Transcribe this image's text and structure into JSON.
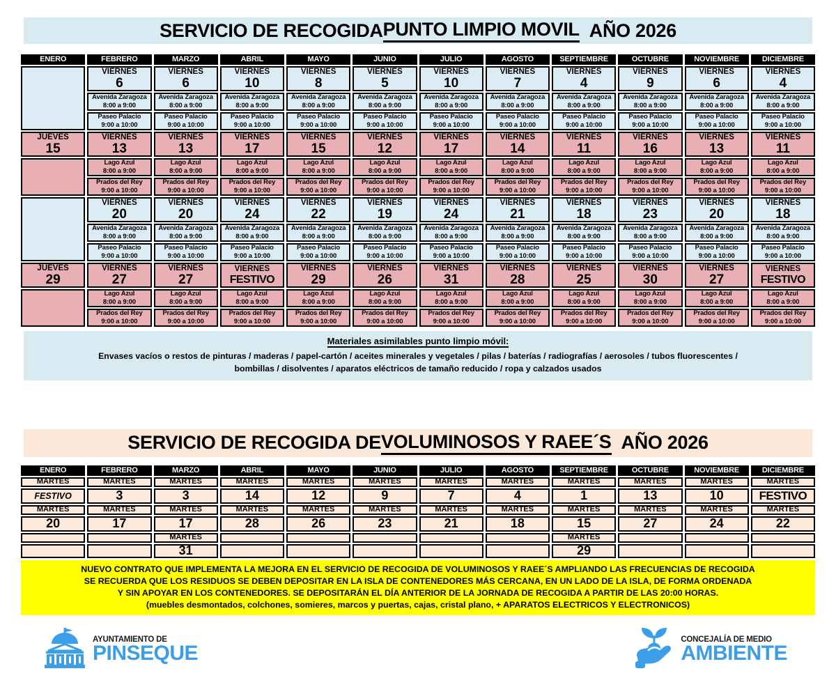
{
  "colors": {
    "cell_blue": "#dcecf4",
    "cell_pink": "#e8b0b4",
    "cell_peach": "#fce9d9",
    "band_blue": "#d8eaf2",
    "band_peach": "#fbe8d8",
    "notice_yellow": "#ffff00",
    "header_bg": "#000000",
    "header_fg": "#ffffff",
    "logo_blue": "#3b9ee6"
  },
  "months": [
    "ENERO",
    "FEBRERO",
    "MARZO",
    "ABRIL",
    "MAYO",
    "JUNIO",
    "JULIO",
    "AGOSTO",
    "SEPTIEMBRE",
    "OCTUBRE",
    "NOVIEMBRE",
    "DICIEMBRE"
  ],
  "punto_limpio": {
    "title_prefix": "SERVICIO DE RECOGIDA ",
    "title_underline": "PUNTO LIMPIO MOVIL",
    "title_suffix": "AÑO 2026",
    "day_friday": "VIERNES",
    "locations_blue": {
      "loc1": "Avenida Zaragoza",
      "time1": "8:00 a 9:00",
      "loc2": "Paseo Palacio",
      "time2": "9:00 a 10:00"
    },
    "locations_pink": {
      "loc1": "Lago Azul",
      "time1": "8:00 a 9:00",
      "loc2": "Prados del Rey",
      "time2": "9:00 a 10:00"
    },
    "blocks": [
      {
        "variant": "blue",
        "enero_day": "",
        "enero_date": "",
        "dates": [
          "6",
          "6",
          "10",
          "8",
          "5",
          "10",
          "7",
          "4",
          "9",
          "6",
          "4"
        ]
      },
      {
        "variant": "pink",
        "enero_day": "JUEVES",
        "enero_date": "15",
        "dates": [
          "13",
          "13",
          "17",
          "15",
          "12",
          "17",
          "14",
          "11",
          "16",
          "13",
          "11"
        ]
      },
      {
        "variant": "blue",
        "enero_day": "",
        "enero_date": "",
        "dates": [
          "20",
          "20",
          "24",
          "22",
          "19",
          "24",
          "21",
          "18",
          "23",
          "20",
          "18"
        ]
      },
      {
        "variant": "pink",
        "enero_day": "JUEVES",
        "enero_date": "29",
        "dates": [
          "27",
          "27",
          "FESTIVO",
          "29",
          "26",
          "31",
          "28",
          "25",
          "30",
          "27",
          "FESTIVO"
        ]
      }
    ],
    "materials_heading": "Materiales asimilables punto limpio móvil:",
    "materials_line1": "Envases vacíos o restos de pinturas / maderas / papel-cartón / aceites minerales y vegetales / pilas / baterías / radiografías / aerosoles / tubos fluorescentes /",
    "materials_line2": "bombillas / disolventes / aparatos eléctricos de tamaño reducido / ropa y calzados usados"
  },
  "voluminosos": {
    "title_prefix": "SERVICIO DE RECOGIDA DE ",
    "title_underline": "VOLUMINOSOS Y RAEE´S",
    "title_suffix": "AÑO 2026",
    "day_label": "MARTES",
    "r1_dates": [
      "FESTIVO",
      "3",
      "3",
      "14",
      "12",
      "9",
      "7",
      "4",
      "1",
      "13",
      "10",
      "FESTIVO"
    ],
    "r1_italic_cols": [
      0
    ],
    "r2_dates": [
      "20",
      "17",
      "17",
      "28",
      "26",
      "23",
      "21",
      "18",
      "15",
      "27",
      "24",
      "22"
    ],
    "r3_martes_cols": [
      2,
      8
    ],
    "r3_dates": [
      "",
      "",
      "31",
      "",
      "",
      "",
      "",
      "",
      "29",
      "",
      "",
      ""
    ],
    "notice_lines": [
      "NUEVO CONTRATO QUE IMPLEMENTA LA MEJORA EN EL SERVICIO DE RECOGIDA DE VOLUMINOSOS Y RAEE´S AMPLIANDO LAS FRECUENCIAS DE RECOGIDA",
      "SE RECUERDA QUE LOS RESIDUOS SE DEBEN DEPOSITAR EN LA ISLA DE CONTENEDORES MÁS CERCANA, EN UN LADO DE LA ISLA, DE FORMA ORDENADA",
      "Y SIN APOYAR EN LOS CONTENEDORES.  SE DEPOSITARÁN EL DÍA ANTERIOR DE LA JORNADA DE RECOGIDA A PARTIR DE LAS 20:00 HORAS.",
      "(muebles desmontados, colchones, somieres, marcos y puertas, cajas, cristal plano, + APARATOS ELECTRICOS Y ELECTRONICOS)"
    ]
  },
  "footer": {
    "municipality_small": "AYUNTAMIENTO DE",
    "municipality_large": "PINSEQUE",
    "department_small": "CONCEJALÍA DE MEDIO",
    "department_large": "AMBIENTE"
  }
}
